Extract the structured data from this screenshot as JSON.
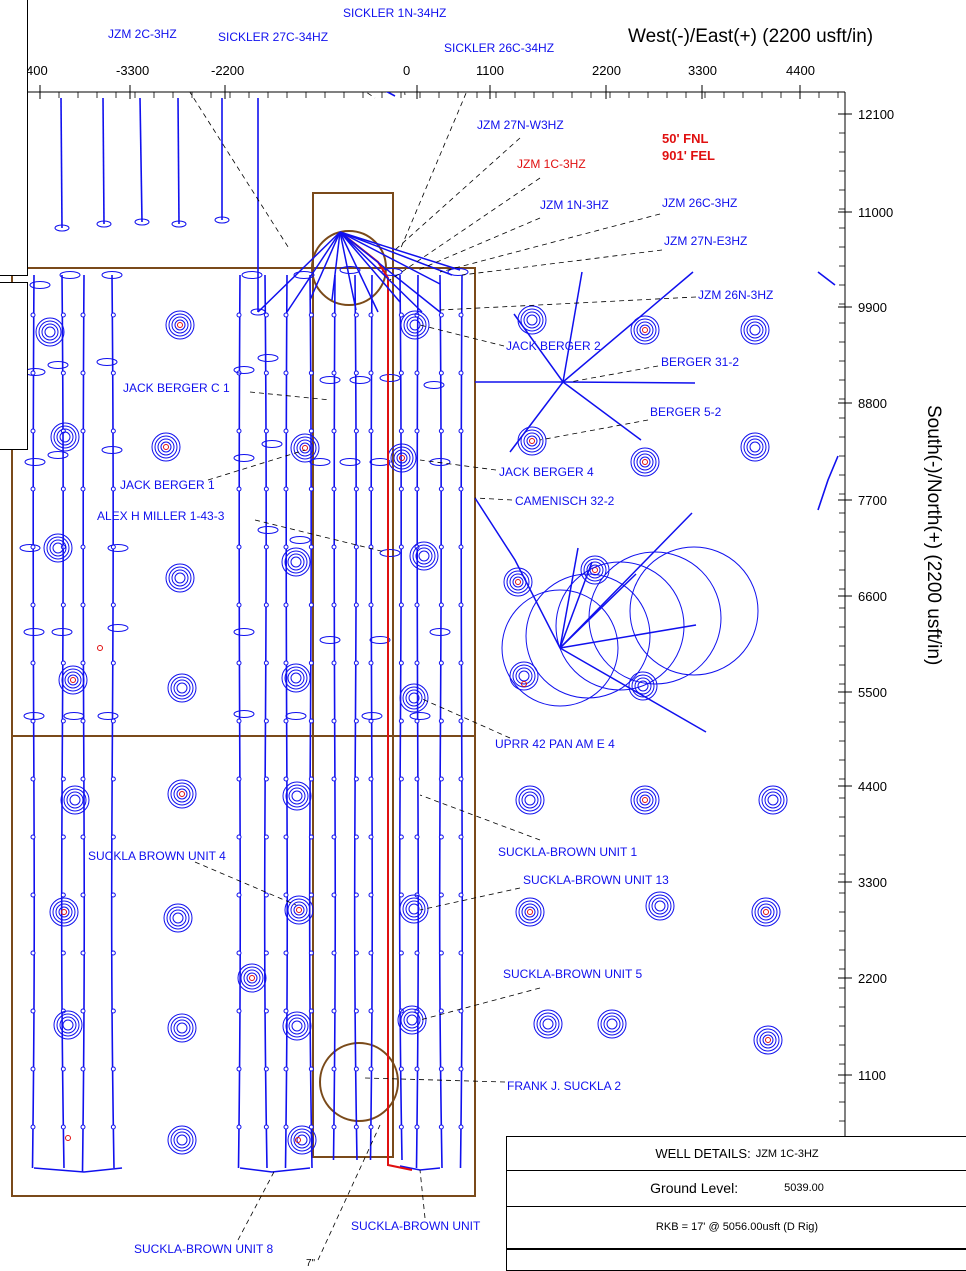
{
  "axes": {
    "x_title": "West(-)/East(+) (2200 usft/in)",
    "y_title": "South(-)/North(+) (2200 usft/in)",
    "x_ticks": [
      "400",
      "-3300",
      "-2200",
      "0",
      "1100",
      "2200",
      "3300",
      "4400"
    ],
    "y_ticks": [
      "12100",
      "11000",
      "9900",
      "8800",
      "7700",
      "6600",
      "5500",
      "4400",
      "3300",
      "2200",
      "1100"
    ]
  },
  "surface_location": {
    "line1": "50' FNL",
    "line2": "901' FEL"
  },
  "well_labels": [
    {
      "id": "sickler-1n-34hz",
      "text": "SICKLER 1N-34HZ",
      "color": "#1010ee"
    },
    {
      "id": "jzm-2c-3hz",
      "text": "JZM 2C-3HZ",
      "color": "#1010ee"
    },
    {
      "id": "sickler-27c-34hz",
      "text": "SICKLER 27C-34HZ",
      "color": "#1010ee"
    },
    {
      "id": "sickler-26c-34hz",
      "text": "SICKLER 26C-34HZ",
      "color": "#1010ee"
    },
    {
      "id": "jzm-27n-w3hz",
      "text": "JZM 27N-W3HZ",
      "color": "#1010ee"
    },
    {
      "id": "jzm-1c-3hz",
      "text": "JZM 1C-3HZ",
      "color": "#e01010"
    },
    {
      "id": "jzm-1n-3hz",
      "text": "JZM 1N-3HZ",
      "color": "#1010ee"
    },
    {
      "id": "jzm-26c-3hz",
      "text": "JZM 26C-3HZ",
      "color": "#1010ee"
    },
    {
      "id": "jzm-27n-e3hz",
      "text": "JZM 27N-E3HZ",
      "color": "#1010ee"
    },
    {
      "id": "jzm-26n-3hz",
      "text": "JZM 26N-3HZ",
      "color": "#1010ee"
    },
    {
      "id": "jack-berger-2",
      "text": "JACK BERGER 2",
      "color": "#1010ee"
    },
    {
      "id": "berger-31-2",
      "text": "BERGER 31-2",
      "color": "#1010ee"
    },
    {
      "id": "jack-berger-c1",
      "text": "JACK BERGER C 1",
      "color": "#1010ee"
    },
    {
      "id": "berger-5-2",
      "text": "BERGER 5-2",
      "color": "#1010ee"
    },
    {
      "id": "jack-berger-4",
      "text": "JACK BERGER 4",
      "color": "#1010ee"
    },
    {
      "id": "jack-berger-1",
      "text": "JACK BERGER 1",
      "color": "#1010ee"
    },
    {
      "id": "camenisch-32-2",
      "text": "CAMENISCH 32-2",
      "color": "#1010ee"
    },
    {
      "id": "alex-h-miller",
      "text": "ALEX H MILLER 1-43-3",
      "color": "#1010ee"
    },
    {
      "id": "uprr-42",
      "text": "UPRR 42 PAN AM E 4",
      "color": "#1010ee"
    },
    {
      "id": "suckla-brown-unit-1",
      "text": "SUCKLA-BROWN UNIT 1",
      "color": "#1010ee"
    },
    {
      "id": "suckla-brown-unit-4",
      "text": "SUCKLA BROWN UNIT 4",
      "color": "#1010ee"
    },
    {
      "id": "suckla-brown-unit-13",
      "text": "SUCKLA-BROWN UNIT 13",
      "color": "#1010ee"
    },
    {
      "id": "suckla-brown-unit-5",
      "text": "SUCKLA-BROWN UNIT 5",
      "color": "#1010ee"
    },
    {
      "id": "frank-j-suckla-2",
      "text": "FRANK J. SUCKLA 2",
      "color": "#1010ee"
    },
    {
      "id": "suckla-brown-unit",
      "text": "SUCKLA-BROWN UNIT",
      "color": "#1010ee"
    },
    {
      "id": "suckla-brown-unit-8",
      "text": "SUCKLA-BROWN UNIT 8",
      "color": "#1010ee"
    }
  ],
  "casing_label": "7\"",
  "well_details": {
    "header_prefix": "WELL DETAILS:",
    "well_name": "JZM 1C-3HZ",
    "ground_level_label": "Ground Level:",
    "ground_level_value": "5039.00",
    "rkb": "RKB = 17' @ 5056.00usft (D Rig)"
  },
  "colors": {
    "offset_well": "#1010ee",
    "subject_well": "#e01010",
    "lease_line": "#7a4a1a",
    "axis": "#000000"
  }
}
